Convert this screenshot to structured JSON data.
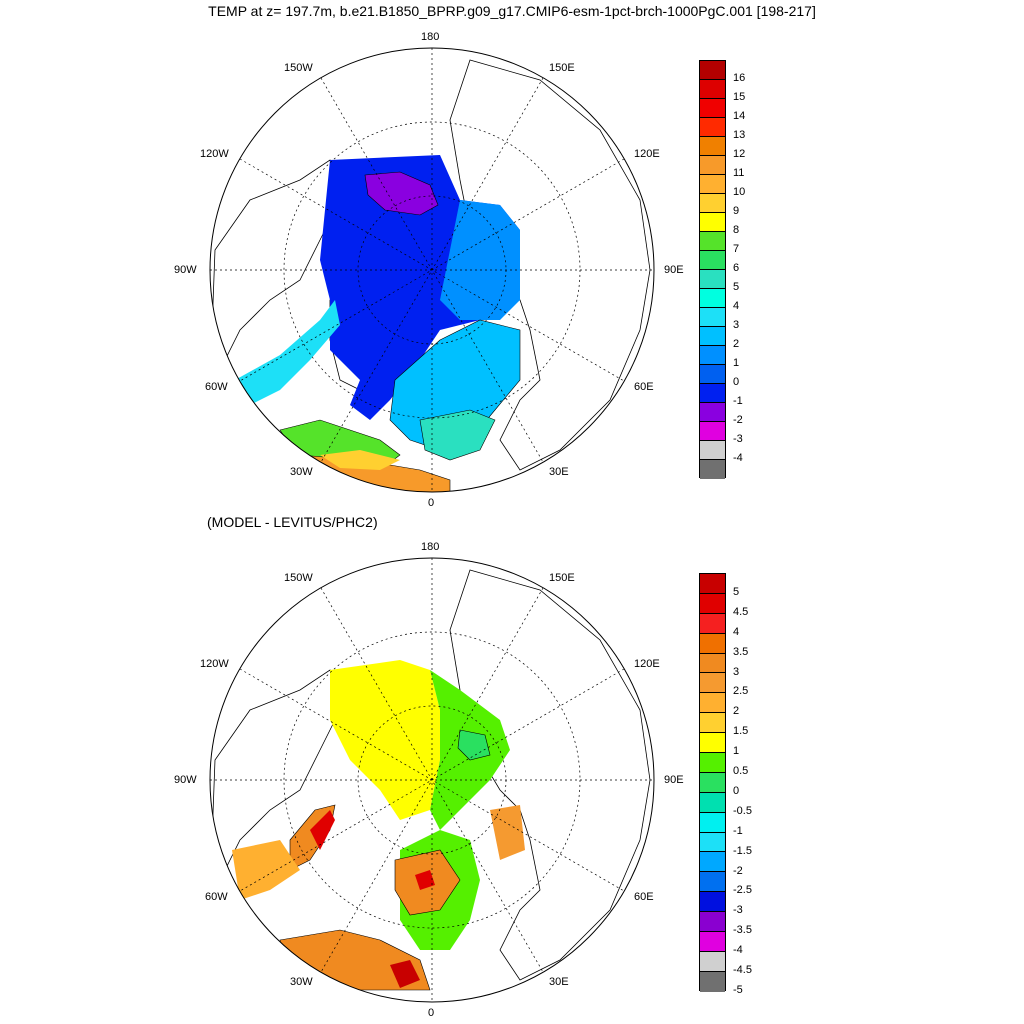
{
  "title": "TEMP at z= 197.7m, b.e21.B1850_BPRP.g09_g17.CMIP6-esm-1pct-brch-1000PgC.001 [198-217]",
  "subtitle": "(MODEL - LEVITUS/PHC2)",
  "lon_labels": {
    "n": "180",
    "s": "0",
    "w": "90W",
    "e": "90E",
    "nw": "150W",
    "ne": "150E",
    "wnw": "120W",
    "ene": "120E",
    "wsw": "60W",
    "ese": "60E",
    "sw": "30W",
    "se": "30E"
  },
  "top_colorbar": {
    "levels": [
      "16",
      "15",
      "14",
      "13",
      "12",
      "11",
      "10",
      "9",
      "8",
      "7",
      "6",
      "5",
      "4",
      "3",
      "2",
      "1",
      "0",
      "-1",
      "-2",
      "-3",
      "-4"
    ],
    "colors": [
      "#b30000",
      "#dd0000",
      "#f00000",
      "#ff2a00",
      "#f08000",
      "#f79a2a",
      "#ffb030",
      "#ffd030",
      "#ffff00",
      "#55e32a",
      "#2ae060",
      "#2ae0c0",
      "#00ffe0",
      "#1de0f7",
      "#00c0ff",
      "#0090ff",
      "#0060f0",
      "#0020f0",
      "#8a00e0",
      "#e000e0",
      "#d0d0d0",
      "#707070"
    ]
  },
  "bottom_colorbar": {
    "levels": [
      "5",
      "4.5",
      "4",
      "3.5",
      "3",
      "2.5",
      "2",
      "1.5",
      "1",
      "0.5",
      "0",
      "-0.5",
      "-1",
      "-1.5",
      "-2",
      "-2.5",
      "-3",
      "-3.5",
      "-4",
      "-4.5",
      "-5"
    ],
    "colors": [
      "#c80000",
      "#e00000",
      "#f52020",
      "#f07000",
      "#f08a20",
      "#f59a30",
      "#ffb030",
      "#ffd030",
      "#ffff00",
      "#55f000",
      "#2ae060",
      "#00e0b0",
      "#00f0f0",
      "#1de0f7",
      "#00a8ff",
      "#0070f0",
      "#0010e0",
      "#8a00d0",
      "#e000e0",
      "#d0d0d0",
      "#707070"
    ]
  }
}
